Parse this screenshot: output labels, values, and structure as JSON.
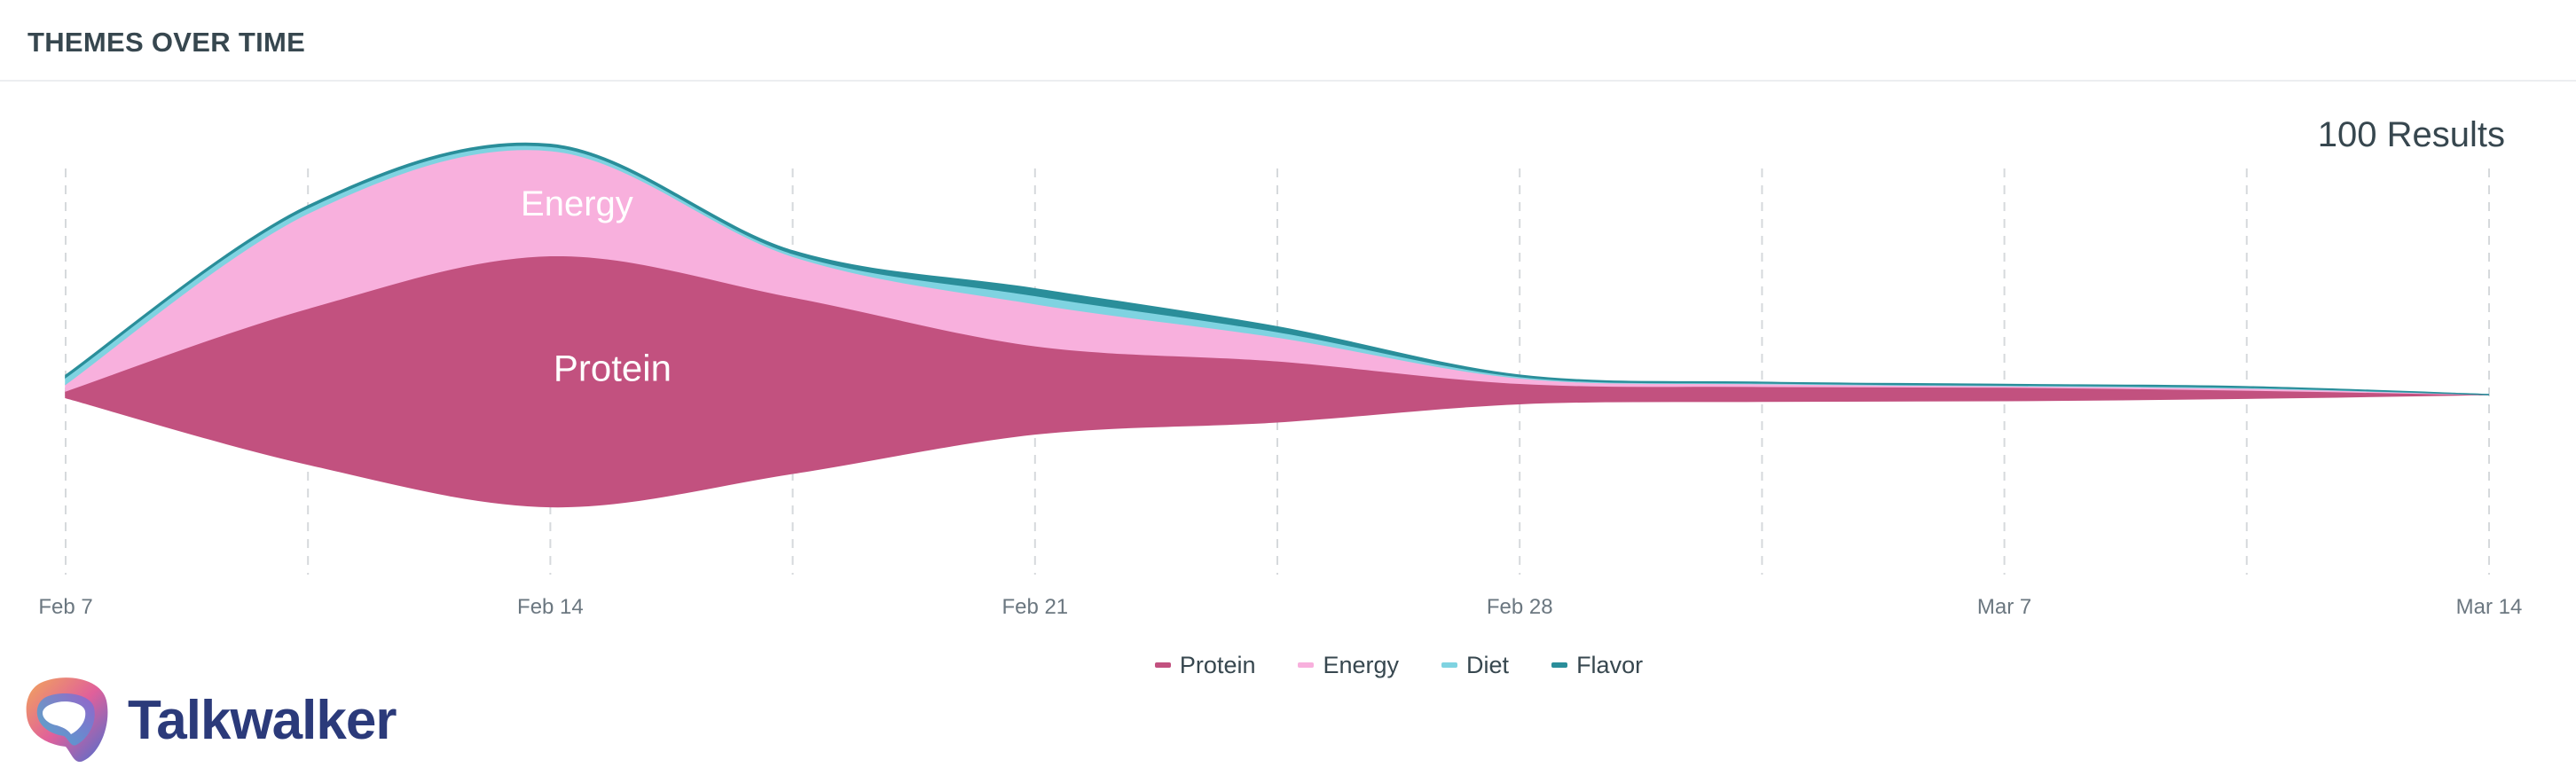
{
  "header": {
    "title": "THEMES OVER TIME"
  },
  "results": "100 Results",
  "brand": {
    "name": "Talkwalker",
    "logo_icon": "talkwalker-logo-icon"
  },
  "chart_data": {
    "type": "area",
    "x": [
      "Feb 7",
      "Feb 10.5",
      "Feb 14",
      "Feb 17.5",
      "Feb 21",
      "Feb 24.5",
      "Feb 28",
      "Mar 3.5",
      "Mar 7",
      "Mar 10.5",
      "Mar 14"
    ],
    "xticks": [
      "Feb 7",
      "Feb 14",
      "Feb 21",
      "Feb 28",
      "Mar 7",
      "Mar 14"
    ],
    "series": [
      {
        "name": "Protein",
        "color": "#c2517f",
        "values": [
          1,
          23,
          37,
          26,
          13,
          9,
          3,
          2.2,
          2.0,
          1.2,
          0
        ]
      },
      {
        "name": "Energy",
        "color": "#f8b0dd",
        "values": [
          1,
          14,
          15.5,
          6,
          6.2,
          3.5,
          0.8,
          0.4,
          0.2,
          0.3,
          0
        ]
      },
      {
        "name": "Diet",
        "color": "#7fd3e1",
        "values": [
          1,
          0.8,
          0.6,
          0.4,
          1.2,
          0.8,
          0.2,
          0.1,
          0.1,
          0.1,
          0
        ]
      },
      {
        "name": "Flavor",
        "color": "#2a8e9a",
        "values": [
          0.3,
          0.3,
          0.3,
          0.4,
          1.0,
          0.7,
          0.2,
          0.1,
          0.1,
          0.1,
          0
        ]
      }
    ],
    "labels": [
      {
        "series": "Energy",
        "text": "Energy"
      },
      {
        "series": "Protein",
        "text": "Protein"
      }
    ],
    "grid": true,
    "legend_position": "bottom-center"
  }
}
